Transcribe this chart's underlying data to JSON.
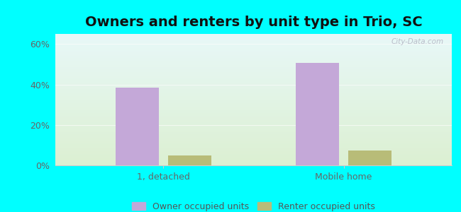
{
  "title": "Owners and renters by unit type in Trio, SC",
  "categories": [
    "1, detached",
    "Mobile home"
  ],
  "owner_values": [
    38.5,
    50.5
  ],
  "renter_values": [
    5.0,
    7.5
  ],
  "owner_color": "#c4a8d8",
  "renter_color": "#b8bc78",
  "bar_width": 0.12,
  "ylim": [
    0,
    65
  ],
  "yticks": [
    0,
    20,
    40,
    60
  ],
  "ytick_labels": [
    "0%",
    "20%",
    "40%",
    "60%"
  ],
  "fig_bg_color": "#00ffff",
  "plot_bg_top": "#e8f8f8",
  "plot_bg_bot": "#dff0df",
  "legend_owner": "Owner occupied units",
  "legend_renter": "Renter occupied units",
  "title_fontsize": 14,
  "tick_fontsize": 9,
  "legend_fontsize": 9,
  "watermark": "City-Data.com",
  "group_centers": [
    0.25,
    0.75
  ]
}
